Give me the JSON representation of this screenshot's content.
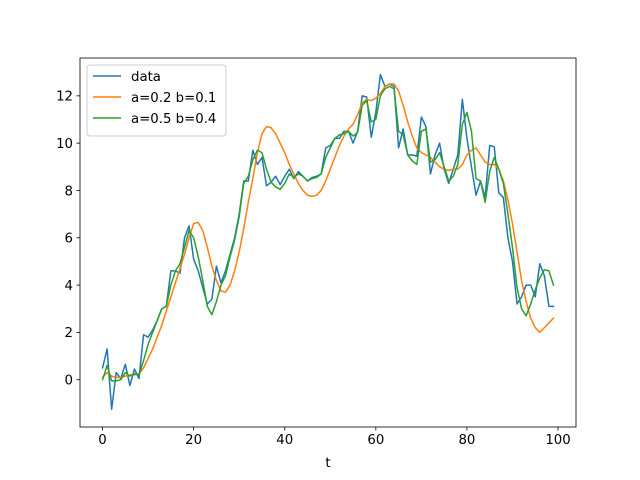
{
  "chart_data": {
    "type": "line",
    "xlabel": "t",
    "ylabel": "",
    "xlim": [
      -4.95,
      103.95
    ],
    "ylim": [
      -2.0,
      13.6
    ],
    "xticks": [
      0,
      20,
      40,
      60,
      80,
      100
    ],
    "yticks": [
      0,
      2,
      4,
      6,
      8,
      10,
      12
    ],
    "grid": false,
    "legend": "top-left",
    "series": [
      {
        "name": "data",
        "color": "#1f77b4",
        "x": [
          0,
          1,
          2,
          3,
          4,
          5,
          6,
          7,
          8,
          9,
          10,
          11,
          12,
          13,
          14,
          15,
          16,
          17,
          18,
          19,
          20,
          21,
          22,
          23,
          24,
          25,
          26,
          27,
          28,
          29,
          30,
          31,
          32,
          33,
          34,
          35,
          36,
          37,
          38,
          39,
          40,
          41,
          42,
          43,
          44,
          45,
          46,
          47,
          48,
          49,
          50,
          51,
          52,
          53,
          54,
          55,
          56,
          57,
          58,
          59,
          60,
          61,
          62,
          63,
          64,
          65,
          66,
          67,
          68,
          69,
          70,
          71,
          72,
          73,
          74,
          75,
          76,
          77,
          78,
          79,
          80,
          81,
          82,
          83,
          84,
          85,
          86,
          87,
          88,
          89,
          90,
          91,
          92,
          93,
          94,
          95,
          96,
          97,
          98,
          99
        ],
        "y": [
          0.5,
          1.3,
          -1.25,
          0.3,
          0.05,
          0.65,
          -0.25,
          0.45,
          0.05,
          1.9,
          1.8,
          2.1,
          2.5,
          3.0,
          3.1,
          4.6,
          4.6,
          4.5,
          6.0,
          6.5,
          5.1,
          4.6,
          3.9,
          3.2,
          3.4,
          4.8,
          4.1,
          4.6,
          5.3,
          6.0,
          7.0,
          8.4,
          8.4,
          9.7,
          9.1,
          9.4,
          8.2,
          8.35,
          8.6,
          8.25,
          8.6,
          8.9,
          8.5,
          8.8,
          8.6,
          8.4,
          8.55,
          8.6,
          8.7,
          9.8,
          9.9,
          10.2,
          10.2,
          10.5,
          10.5,
          10.0,
          10.5,
          12.0,
          11.95,
          10.25,
          11.3,
          12.9,
          12.4,
          12.5,
          12.4,
          9.8,
          10.6,
          9.5,
          9.5,
          9.45,
          11.1,
          10.7,
          8.7,
          9.5,
          10.0,
          8.9,
          8.3,
          8.9,
          9.5,
          11.85,
          10.2,
          9.0,
          7.8,
          8.4,
          7.7,
          9.9,
          9.85,
          7.9,
          7.7,
          6.0,
          5.0,
          3.2,
          3.5,
          4.0,
          4.0,
          3.5,
          4.9,
          4.4,
          3.1,
          3.1
        ]
      },
      {
        "name": "a=0.2 b=0.1",
        "color": "#ff7f0e",
        "x": [
          0,
          1,
          2,
          3,
          4,
          5,
          6,
          7,
          8,
          9,
          10,
          11,
          12,
          13,
          14,
          15,
          16,
          17,
          18,
          19,
          20,
          21,
          22,
          23,
          24,
          25,
          26,
          27,
          28,
          29,
          30,
          31,
          32,
          33,
          34,
          35,
          36,
          37,
          38,
          39,
          40,
          41,
          42,
          43,
          44,
          45,
          46,
          47,
          48,
          49,
          50,
          51,
          52,
          53,
          54,
          55,
          56,
          57,
          58,
          59,
          60,
          61,
          62,
          63,
          64,
          65,
          66,
          67,
          68,
          69,
          70,
          71,
          72,
          73,
          74,
          75,
          76,
          77,
          78,
          79,
          80,
          81,
          82,
          83,
          84,
          85,
          86,
          87,
          88,
          89,
          90,
          91,
          92,
          93,
          94,
          95,
          96,
          97,
          98,
          99
        ],
        "y": [
          0.1,
          0.3,
          0.15,
          0.1,
          0.1,
          0.15,
          0.2,
          0.2,
          0.25,
          0.5,
          0.9,
          1.3,
          1.8,
          2.3,
          2.9,
          3.5,
          4.1,
          4.7,
          5.3,
          6.0,
          6.6,
          6.65,
          6.3,
          5.6,
          4.8,
          4.2,
          3.75,
          3.7,
          4.0,
          4.6,
          5.4,
          6.4,
          7.5,
          8.5,
          9.6,
          10.4,
          10.7,
          10.65,
          10.4,
          10.0,
          9.6,
          9.1,
          8.7,
          8.3,
          8.0,
          7.8,
          7.75,
          7.8,
          8.0,
          8.4,
          8.9,
          9.4,
          9.9,
          10.3,
          10.6,
          10.8,
          11.2,
          11.7,
          11.85,
          11.8,
          11.9,
          12.1,
          12.4,
          12.5,
          12.5,
          12.2,
          11.6,
          10.9,
          10.3,
          9.8,
          9.6,
          9.5,
          9.4,
          9.2,
          9.0,
          8.9,
          8.85,
          8.9,
          8.9,
          9.1,
          9.5,
          9.7,
          9.8,
          9.5,
          9.2,
          9.1,
          9.1,
          8.9,
          8.4,
          7.6,
          6.6,
          5.4,
          4.2,
          3.3,
          2.6,
          2.2,
          2.0,
          2.2,
          2.4,
          2.6
        ]
      },
      {
        "name": "a=0.5 b=0.4",
        "color": "#2ca02c",
        "x": [
          0,
          1,
          2,
          3,
          4,
          5,
          6,
          7,
          8,
          9,
          10,
          11,
          12,
          13,
          14,
          15,
          16,
          17,
          18,
          19,
          20,
          21,
          22,
          23,
          24,
          25,
          26,
          27,
          28,
          29,
          30,
          31,
          32,
          33,
          34,
          35,
          36,
          37,
          38,
          39,
          40,
          41,
          42,
          43,
          44,
          45,
          46,
          47,
          48,
          49,
          50,
          51,
          52,
          53,
          54,
          55,
          56,
          57,
          58,
          59,
          60,
          61,
          62,
          63,
          64,
          65,
          66,
          67,
          68,
          69,
          70,
          71,
          72,
          73,
          74,
          75,
          76,
          77,
          78,
          79,
          80,
          81,
          82,
          83,
          84,
          85,
          86,
          87,
          88,
          89,
          90,
          91,
          92,
          93,
          94,
          95,
          96,
          97,
          98,
          99
        ],
        "y": [
          0.0,
          0.6,
          -0.05,
          -0.05,
          0.0,
          0.3,
          0.15,
          0.25,
          0.2,
          0.8,
          1.5,
          2.0,
          2.5,
          3.0,
          3.1,
          4.0,
          4.6,
          4.9,
          5.6,
          6.3,
          6.0,
          5.2,
          4.2,
          3.1,
          2.75,
          3.3,
          4.0,
          4.4,
          5.2,
          5.9,
          6.9,
          8.3,
          8.6,
          9.3,
          9.7,
          9.6,
          8.9,
          8.35,
          8.15,
          8.05,
          8.3,
          8.7,
          8.55,
          8.7,
          8.6,
          8.4,
          8.5,
          8.55,
          8.7,
          9.4,
          9.8,
          10.2,
          10.35,
          10.4,
          10.5,
          10.3,
          10.45,
          11.6,
          11.8,
          10.9,
          11.0,
          12.0,
          12.3,
          12.4,
          12.3,
          10.5,
          10.35,
          9.5,
          9.25,
          9.1,
          10.5,
          10.6,
          9.2,
          9.3,
          9.6,
          9.0,
          8.4,
          8.6,
          9.1,
          10.8,
          11.3,
          10.5,
          8.5,
          8.4,
          7.5,
          8.8,
          9.4,
          8.9,
          8.3,
          7.0,
          5.6,
          3.9,
          3.0,
          2.7,
          3.2,
          3.8,
          4.3,
          4.65,
          4.6,
          4.0
        ]
      }
    ]
  }
}
